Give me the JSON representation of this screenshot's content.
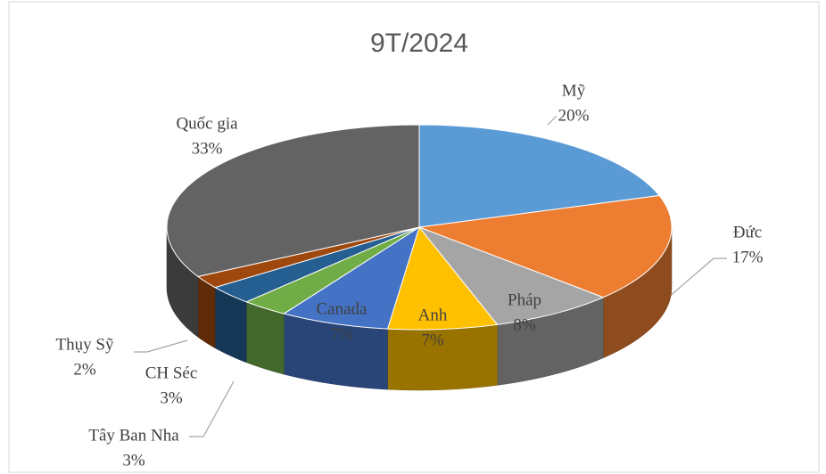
{
  "chart_data": {
    "type": "pie3d",
    "title": "9T/2024",
    "categories": [
      "Mỹ",
      "Đức",
      "Pháp",
      "Anh",
      "Canada",
      "Tây Ban Nha",
      "CH Séc",
      "Thụy Sỹ",
      "Quốc gia"
    ],
    "values": [
      20,
      17,
      8,
      7,
      7,
      3,
      3,
      2,
      33
    ],
    "value_labels": [
      "20%",
      "17%",
      "8%",
      "7%",
      "7%",
      "3%",
      "3%",
      "2%",
      "33%"
    ],
    "colors": [
      "#5b9bd5",
      "#ed7d31",
      "#a5a5a5",
      "#ffc000",
      "#4472c4",
      "#70ad47",
      "#255e91",
      "#9e480e",
      "#636363"
    ]
  }
}
